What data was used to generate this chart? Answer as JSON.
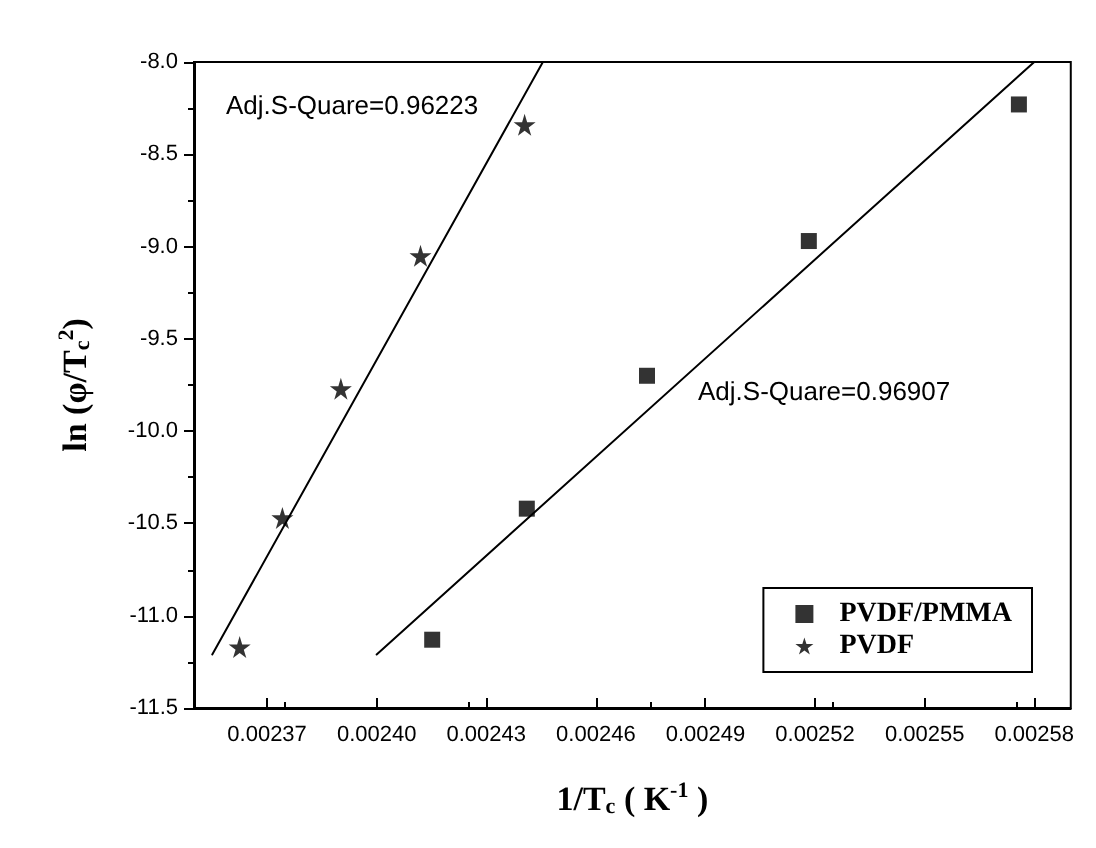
{
  "chart_data": {
    "type": "scatter",
    "xlabel": "1/T$_{c}$ ( K$^{-1}$ )",
    "ylabel": "ln (φ/T$_{c}$$^{2}$)",
    "annotations": [
      "Adj.S-Quare=0.96223",
      "Adj.S-Quare=0.96907"
    ],
    "series": [
      {
        "name": "PVDF/PMMA",
        "type": "scatter",
        "marker": "square",
        "color": "#000000",
        "x": [
          0.0024152,
          0.0024411,
          0.002474,
          0.0025183,
          0.0025758
        ],
        "values": [
          -11.13,
          -10.42,
          -9.7,
          -8.97,
          -8.23
        ]
      },
      {
        "name": "PVDF",
        "type": "scatter",
        "marker": "star",
        "color": "#000000",
        "x": [
          0.0023625,
          0.0023742,
          0.0023902,
          0.002412,
          0.0024405
        ],
        "values": [
          -11.17,
          -10.47,
          -9.77,
          -9.05,
          -8.34
        ]
      },
      {
        "type": "line",
        "marker": "none",
        "line_style": "solid",
        "color": "#000000",
        "x": [
          0.002355,
          0.0024455
        ],
        "values": [
          -11.21,
          -8.0
        ]
      },
      {
        "type": "line",
        "marker": "none",
        "line_style": "solid",
        "color": "#000000",
        "x": [
          0.0024,
          0.00258
        ],
        "values": [
          -11.21,
          -8.0
        ]
      }
    ],
    "xlim": [
      0.00235,
      0.00259
    ],
    "xticks": [
      0.00237,
      {
        "value": 0.0024,
        "label": "0.00240"
      },
      0.00243,
      0.00246,
      0.00249,
      0.00252,
      0.00255,
      0.00258
    ],
    "ylim": [
      -11.5,
      -8.0
    ],
    "yticks": [
      {
        "value": -11.5,
        "label": "-11.5"
      },
      {
        "value": -11,
        "label": "-11.0"
      },
      {
        "value": -10.5,
        "label": "-10.5"
      },
      {
        "value": -10,
        "label": "-10.0"
      },
      {
        "value": -9.5,
        "label": "-9.5"
      },
      {
        "value": -9,
        "label": "-9.0"
      },
      {
        "value": -8.5,
        "label": "-8.5"
      },
      {
        "value": -8,
        "label": "-8.0"
      }
    ],
    "grid": false,
    "legend": "bottom right"
  }
}
